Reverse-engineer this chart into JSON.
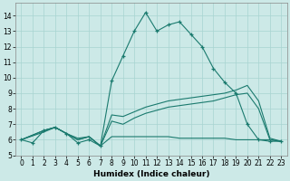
{
  "xlabel": "Humidex (Indice chaleur)",
  "xlim": [
    -0.5,
    23.5
  ],
  "ylim": [
    5,
    14.8
  ],
  "yticks": [
    5,
    6,
    7,
    8,
    9,
    10,
    11,
    12,
    13,
    14
  ],
  "xticks": [
    0,
    1,
    2,
    3,
    4,
    5,
    6,
    7,
    8,
    9,
    10,
    11,
    12,
    13,
    14,
    15,
    16,
    17,
    18,
    19,
    20,
    21,
    22,
    23
  ],
  "background_color": "#cce9e7",
  "grid_color": "#a8d4d1",
  "line_color": "#1a7a6e",
  "line1_x": [
    0,
    1,
    2,
    3,
    4,
    5,
    6,
    7,
    8,
    9,
    10,
    11,
    12,
    13,
    14,
    15,
    16,
    17,
    18,
    19,
    20,
    21,
    22,
    23
  ],
  "line1_y": [
    6.0,
    5.8,
    6.6,
    6.8,
    6.4,
    5.8,
    6.0,
    5.6,
    9.8,
    11.4,
    13.0,
    14.2,
    13.0,
    13.4,
    13.6,
    12.8,
    12.0,
    10.6,
    9.7,
    9.0,
    7.0,
    6.0,
    5.9,
    5.9
  ],
  "line2_x": [
    0,
    2,
    3,
    4,
    5,
    6,
    7,
    8,
    9,
    10,
    11,
    12,
    13,
    14,
    15,
    16,
    17,
    18,
    19,
    20,
    21,
    22,
    23
  ],
  "line2_y": [
    6.0,
    6.6,
    6.8,
    6.4,
    6.0,
    6.2,
    5.6,
    7.6,
    7.5,
    7.8,
    8.1,
    8.3,
    8.5,
    8.6,
    8.7,
    8.8,
    8.9,
    9.0,
    9.2,
    9.5,
    8.5,
    6.1,
    5.9
  ],
  "line3_x": [
    0,
    2,
    3,
    4,
    5,
    6,
    7,
    8,
    9,
    10,
    11,
    12,
    13,
    14,
    15,
    16,
    17,
    18,
    19,
    20,
    21,
    22,
    23
  ],
  "line3_y": [
    6.0,
    6.6,
    6.8,
    6.4,
    6.0,
    6.2,
    5.6,
    7.2,
    7.0,
    7.4,
    7.7,
    7.9,
    8.1,
    8.2,
    8.3,
    8.4,
    8.5,
    8.7,
    8.9,
    9.0,
    8.0,
    6.0,
    5.9
  ],
  "line4_x": [
    0,
    2,
    3,
    4,
    5,
    6,
    7,
    8,
    9,
    10,
    11,
    12,
    13,
    14,
    15,
    16,
    17,
    18,
    19,
    20,
    21,
    22,
    23
  ],
  "line4_y": [
    6.0,
    6.5,
    6.8,
    6.4,
    6.1,
    6.2,
    5.6,
    6.2,
    6.2,
    6.2,
    6.2,
    6.2,
    6.2,
    6.1,
    6.1,
    6.1,
    6.1,
    6.1,
    6.0,
    6.0,
    6.0,
    6.0,
    5.9
  ]
}
